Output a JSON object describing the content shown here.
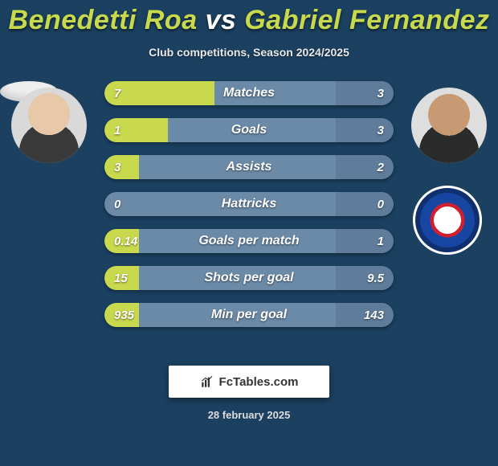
{
  "title": {
    "player1": "Benedetti Roa",
    "vs": "vs",
    "player2": "Gabriel Fernandez",
    "player1_color": "#c9d94e",
    "player2_color": "#c9d94e",
    "vs_color": "#ffffff",
    "fontsize": 34
  },
  "subtitle": "Club competitions, Season 2024/2025",
  "background_color": "#1b4060",
  "bar_style": {
    "height": 30,
    "gap": 16,
    "radius": 16,
    "track_color": "#6b8aa7",
    "fill_left_color": "#c9d94e",
    "fill_right_color": "#5f7d9a",
    "label_fontsize": 16,
    "value_fontsize": 15,
    "text_color": "#ffffff"
  },
  "rows": [
    {
      "label": "Matches",
      "left_val": "7",
      "right_val": "3",
      "left_pct": 38,
      "right_pct": 20
    },
    {
      "label": "Goals",
      "left_val": "1",
      "right_val": "3",
      "left_pct": 22,
      "right_pct": 20
    },
    {
      "label": "Assists",
      "left_val": "3",
      "right_val": "2",
      "left_pct": 12,
      "right_pct": 20
    },
    {
      "label": "Hattricks",
      "left_val": "0",
      "right_val": "0",
      "left_pct": 0,
      "right_pct": 20
    },
    {
      "label": "Goals per match",
      "left_val": "0.14",
      "right_val": "1",
      "left_pct": 12,
      "right_pct": 20
    },
    {
      "label": "Shots per goal",
      "left_val": "15",
      "right_val": "9.5",
      "left_pct": 12,
      "right_pct": 20
    },
    {
      "label": "Min per goal",
      "left_val": "935",
      "right_val": "143",
      "left_pct": 12,
      "right_pct": 20
    }
  ],
  "footer": {
    "site": "FcTables.com",
    "date": "28 february 2025",
    "badge_bg": "#ffffff",
    "badge_text_color": "#333333"
  },
  "avatars": {
    "left_has_club_badge": false,
    "right_has_club_badge": true
  }
}
